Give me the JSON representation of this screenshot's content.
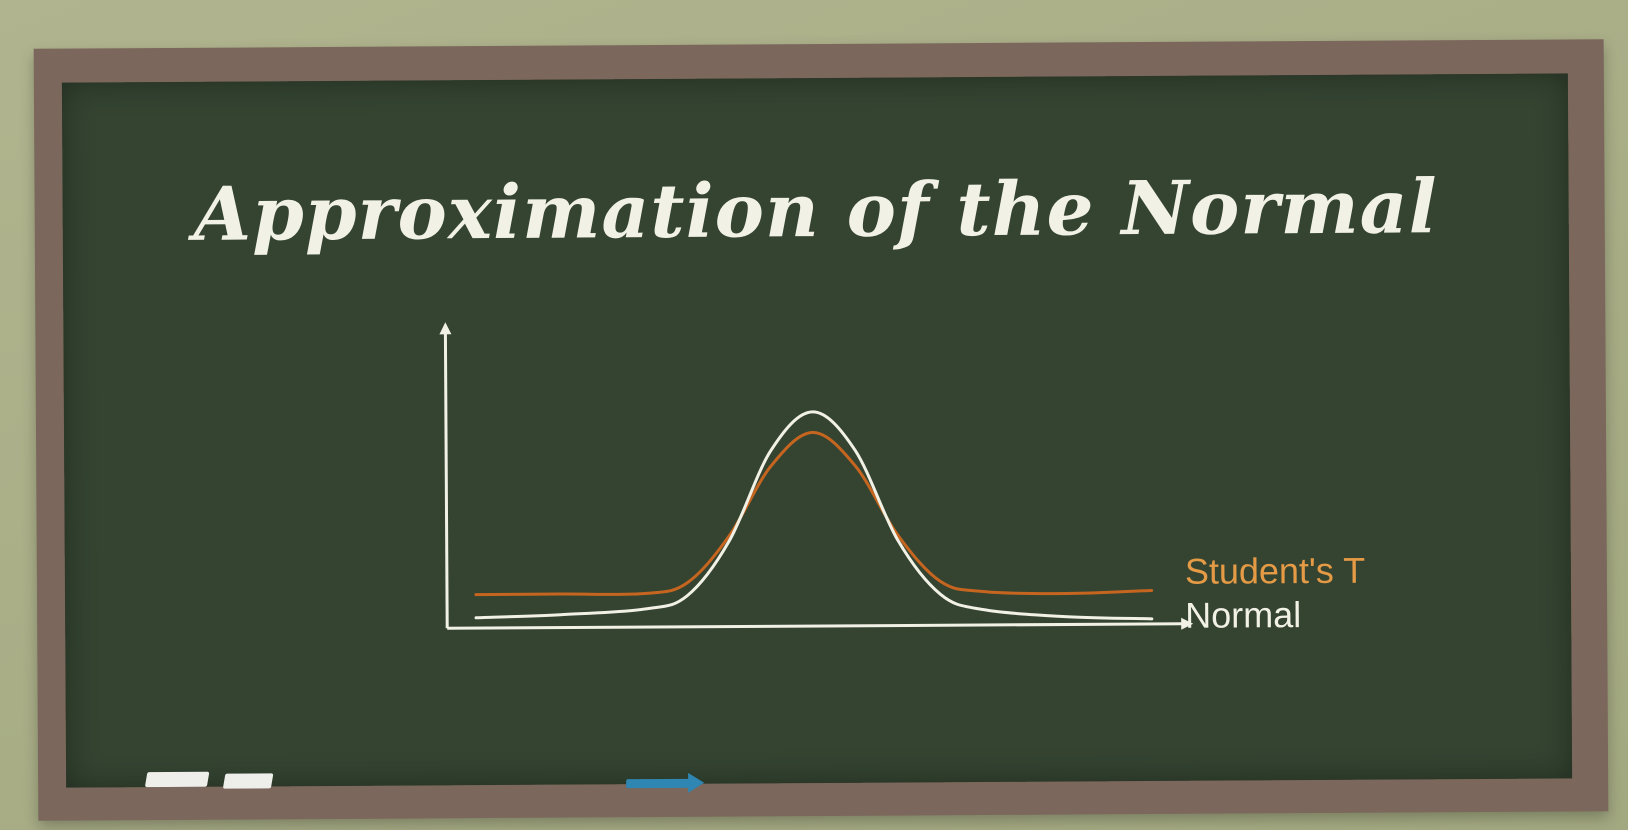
{
  "title": "Approximation of the Normal",
  "colors": {
    "board": "#344431",
    "frame": "#7b675b",
    "wall": "#a9ae87",
    "chalk_white": "#f2f1e6",
    "student_t": "#c5651f",
    "student_t_label": "#e59a45",
    "marker": "#2f86b2"
  },
  "chart_data": {
    "type": "line",
    "title": "",
    "xlabel": "",
    "ylabel": "",
    "legend_position": "right",
    "grid": false,
    "series": [
      {
        "name": "Student's T",
        "color": "#c5651f",
        "x": [
          -4,
          -3,
          -2,
          -1.5,
          -1,
          -0.5,
          0,
          0.5,
          1,
          1.5,
          2,
          3,
          4
        ],
        "y": [
          0.13,
          0.13,
          0.13,
          0.17,
          0.35,
          0.62,
          0.75,
          0.62,
          0.35,
          0.17,
          0.13,
          0.12,
          0.13
        ]
      },
      {
        "name": "Normal",
        "color": "#f2f1e6",
        "x": [
          -4,
          -3,
          -2,
          -1.5,
          -1,
          -0.5,
          0,
          0.5,
          1,
          1.5,
          2,
          3,
          4
        ],
        "y": [
          0.04,
          0.05,
          0.07,
          0.12,
          0.33,
          0.68,
          0.83,
          0.68,
          0.33,
          0.12,
          0.06,
          0.03,
          0.02
        ]
      }
    ],
    "xlim": [
      -4.2,
      4.3
    ],
    "ylim": [
      0,
      1
    ]
  },
  "decor": {
    "chalk_pieces": 2,
    "marker_icon": "marker-icon"
  }
}
